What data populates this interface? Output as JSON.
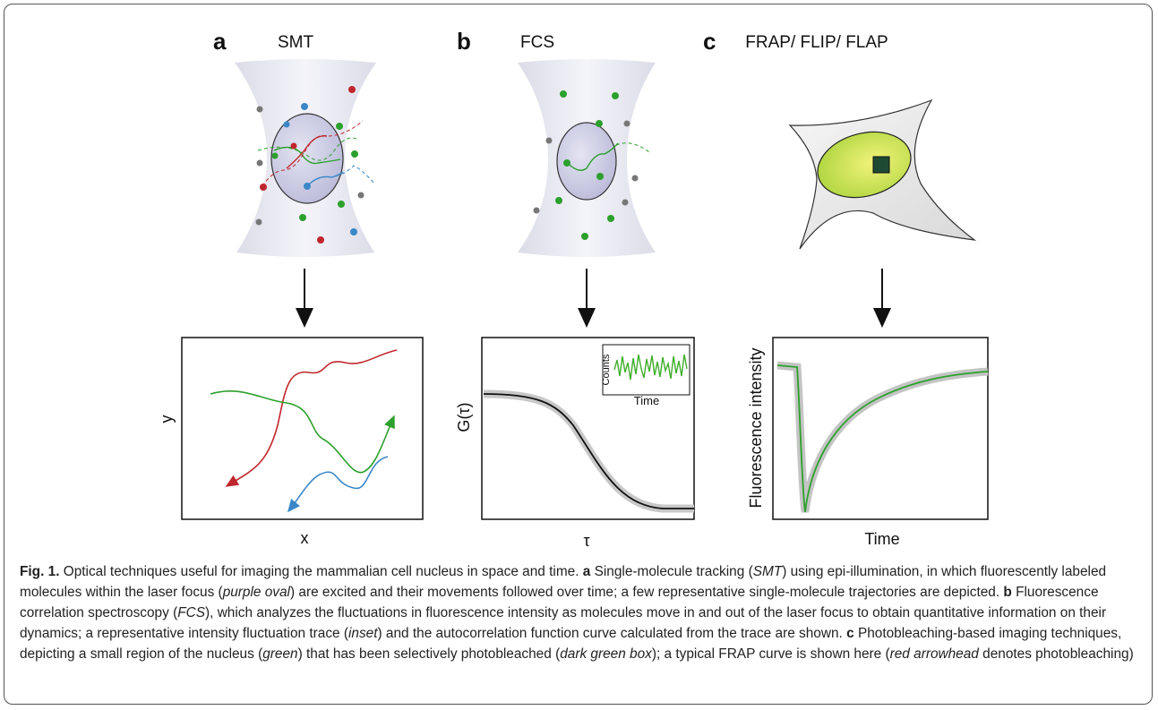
{
  "panels": [
    {
      "label": "a",
      "title": "SMT",
      "x_label": "x",
      "y_label": "y"
    },
    {
      "label": "b",
      "title": "FCS",
      "x_label": "τ",
      "y_label": "G(τ)",
      "inset_x_label": "Time",
      "inset_y_label": "Counts"
    },
    {
      "label": "c",
      "title": "FRAP/ FLIP/ FLAP",
      "x_label": "Time",
      "y_label": "Fluorescence intensity"
    }
  ],
  "caption": {
    "segments": [
      "Fig. 1.",
      "Optical techniques useful for imaging the mammalian cell nucleus in space and time.",
      "a",
      "Single-molecule tracking (",
      "SMT",
      ") using epi-illumination, in which fluorescently labeled molecules within the laser focus (",
      "purple oval",
      ") are excited and their movements followed over time; a few representative single-molecule trajectories are depicted.",
      "b",
      "Fluorescence correlation spectroscopy (",
      "FCS",
      "), which analyzes the fluctuations in fluorescence intensity as molecules move in and out of the laser focus to obtain quantitative information on their dynamics; a representative intensity fluctuation trace (",
      "inset",
      ") and the autocorrelation function curve calculated from the trace are shown.",
      "c",
      "Photobleaching-based imaging techniques, depicting a small region of the nucleus (",
      "green",
      ") that has been selectively photobleached (",
      "dark green box",
      "); a typical FRAP curve is shown here (",
      "red arrowhead",
      "denotes photobleaching)"
    ]
  }
}
